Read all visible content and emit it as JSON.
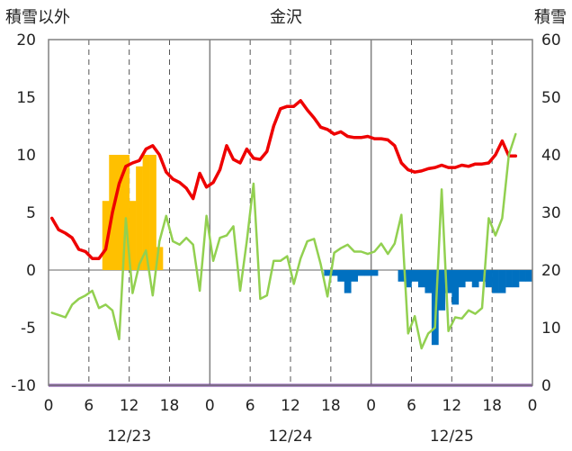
{
  "chart_data": {
    "type": "bar+line",
    "title": "金沢",
    "left_axis_label": "積雪以外",
    "right_axis_label": "積雪",
    "left_ylim": [
      -10,
      20
    ],
    "left_ticks": [
      "20",
      "15",
      "10",
      "5",
      "0",
      "-5",
      "-10"
    ],
    "right_ylim": [
      0,
      60
    ],
    "right_ticks": [
      "60",
      "50",
      "40",
      "30",
      "20",
      "10",
      "0"
    ],
    "x_range_hours": [
      0,
      72
    ],
    "x_tick_labels": [
      "0",
      "6",
      "12",
      "18",
      "0",
      "6",
      "12",
      "18",
      "0",
      "6",
      "12",
      "18",
      "0"
    ],
    "date_labels": [
      "12/23",
      "12/24",
      "12/25"
    ],
    "grid": true,
    "colors": {
      "temperature": "#ee0000",
      "wind": "#92d050",
      "snowfall": "#ffc000",
      "snow_depth_change": "#0070c0",
      "baseline": "#7030a0",
      "day_grid": "#808080",
      "hour_grid": "#555555"
    },
    "series": [
      {
        "type": "line",
        "axis": "left",
        "color": "temperature",
        "values": [
          4.5,
          3.5,
          3.2,
          2.8,
          1.8,
          1.6,
          1.0,
          1.0,
          1.8,
          5.0,
          7.5,
          9.0,
          9.3,
          9.5,
          10.5,
          10.8,
          10.0,
          8.5,
          7.9,
          7.6,
          7.1,
          6.2,
          8.4,
          7.2,
          7.6,
          8.7,
          10.8,
          9.6,
          9.3,
          10.5,
          9.7,
          9.6,
          10.3,
          12.5,
          14.0,
          14.2,
          14.2,
          14.7,
          13.9,
          13.2,
          12.4,
          12.2,
          11.8,
          12.0,
          11.6,
          11.5,
          11.5,
          11.6,
          11.4,
          11.4,
          11.3,
          10.8,
          9.3,
          8.7,
          8.5,
          8.6,
          8.8,
          8.9,
          9.1,
          8.9,
          8.9,
          9.1,
          9.0,
          9.2,
          9.2,
          9.3,
          10.0,
          11.2,
          9.9,
          9.9
        ]
      },
      {
        "type": "line",
        "axis": "left",
        "color": "wind",
        "values": [
          -3.7,
          -3.9,
          -4.1,
          -3.0,
          -2.5,
          -2.2,
          -1.8,
          -3.3,
          -3.0,
          -3.5,
          -6.0,
          4.5,
          -2.0,
          0.5,
          1.7,
          -2.2,
          2.5,
          4.7,
          2.5,
          2.2,
          2.8,
          2.2,
          -1.8,
          4.7,
          0.8,
          2.8,
          3.0,
          3.8,
          -1.8,
          2.5,
          7.5,
          -2.5,
          -2.2,
          0.8,
          0.8,
          1.2,
          -1.2,
          1.0,
          2.5,
          2.7,
          0.5,
          -2.3,
          1.5,
          1.9,
          2.2,
          1.6,
          1.6,
          1.4,
          1.6,
          2.3,
          1.4,
          2.3,
          4.8,
          -5.5,
          -4.0,
          -6.8,
          -5.5,
          -5.0,
          7.0,
          -5.3,
          -4.1,
          -4.2,
          -3.5,
          -3.8,
          -3.3,
          4.5,
          3.0,
          4.5,
          10.0,
          11.8
        ]
      },
      {
        "type": "bar",
        "axis": "left",
        "color": "snowfall",
        "values": [
          0,
          0,
          0,
          0,
          0,
          0,
          0,
          0,
          6,
          10,
          10,
          10,
          6,
          9,
          10,
          10,
          2,
          0,
          0,
          0,
          0,
          0,
          0,
          0,
          0,
          0,
          0,
          0,
          0,
          0,
          0,
          0,
          0,
          0,
          0,
          0,
          0,
          0,
          0,
          0,
          0,
          0,
          0,
          0,
          0,
          0,
          0,
          0,
          0,
          0,
          0,
          0,
          0,
          0,
          0,
          0,
          0,
          0,
          0,
          0,
          0,
          0,
          0,
          0,
          0,
          0,
          0,
          0,
          0,
          0,
          0,
          0
        ]
      },
      {
        "type": "bar",
        "axis": "left",
        "color": "snow_depth_change",
        "values": [
          0,
          0,
          0,
          0,
          0,
          0,
          0,
          0,
          0,
          0,
          0,
          0,
          0,
          0,
          0,
          0,
          0,
          0,
          0,
          0,
          0,
          0,
          0,
          0,
          0,
          0,
          0,
          0,
          0,
          0,
          0,
          0,
          0,
          0,
          0,
          0,
          0,
          0,
          0,
          0,
          0,
          -0.5,
          -0.5,
          -1.0,
          -2.0,
          -1.0,
          -0.5,
          -0.5,
          -0.5,
          0,
          0,
          0,
          -1.0,
          -1.5,
          -1.0,
          -1.5,
          -2.0,
          -6.5,
          -3.5,
          -2.0,
          -3.0,
          -1.5,
          -1.0,
          -1.5,
          -1.0,
          -1.5,
          -2.0,
          -2.0,
          -1.5,
          -1.5,
          -1.0,
          -1.0
        ]
      }
    ]
  }
}
